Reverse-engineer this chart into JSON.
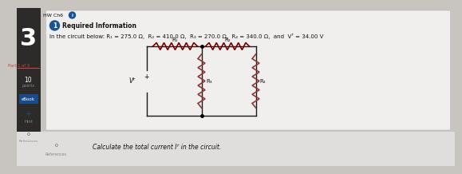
{
  "title": "HW Ch6",
  "problem_number": "3",
  "badge_text": "1",
  "section_title": "Required Information",
  "circuit_line": "In the circuit below: R₁ = 275.0 Ω,  R₂ = 410.0 Ω,  R₃ = 270.0 Ω,  R₄ = 340.0 Ω,  and  Vᵀ = 34.00 V",
  "part_label": "Part 1 of 3",
  "points_top": "10",
  "points_bot": "points",
  "ebook_label": "eBook",
  "hint_label": "Hint",
  "ref_label": "References",
  "bottom_text": "Calculate the total current Iᵀ in the circuit.",
  "bg_outer": "#c8c4bf",
  "bg_sidebar": "#2d2b29",
  "bg_panel": "#f0efed",
  "bg_bottom_strip": "#e0dedd",
  "text_dark": "#111111",
  "text_gray": "#888888",
  "text_white": "#ffffff",
  "badge_color": "#1a5296",
  "ebook_color": "#1a4a8a",
  "hint_color": "#1a4a8a",
  "wire_color": "#1a1a1a",
  "resistor_color_h": "#7a0000",
  "resistor_color_v": "#8B3a3a",
  "part_label_color": "#cc4444",
  "panel_border": "#bbbbbb",
  "circuit_rect_color": "#333333"
}
